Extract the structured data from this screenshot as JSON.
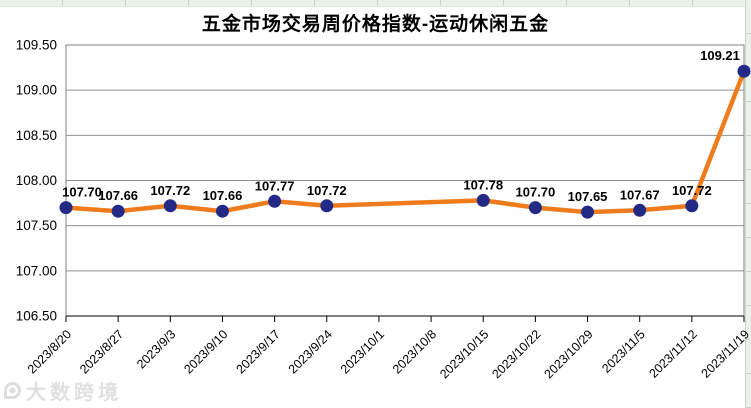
{
  "chart_data": {
    "type": "line",
    "title": "五金市场交易周价格指数-运动休闲五金",
    "categories": [
      "2023/8/20",
      "2023/8/27",
      "2023/9/3",
      "2023/9/10",
      "2023/9/17",
      "2023/9/24",
      "2023/10/1",
      "2023/10/8",
      "2023/10/15",
      "2023/10/22",
      "2023/10/29",
      "2023/11/5",
      "2023/11/12",
      "2023/11/19"
    ],
    "values": [
      107.7,
      107.66,
      107.72,
      107.66,
      107.77,
      107.72,
      null,
      null,
      107.78,
      107.7,
      107.65,
      107.67,
      107.72,
      109.21
    ],
    "data_labels": [
      "107.70",
      "107.66",
      "107.72",
      "107.66",
      "107.77",
      "107.72",
      "107.78",
      "107.70",
      "107.65",
      "107.67",
      "107.72",
      "109.21"
    ],
    "ylim": [
      106.5,
      109.5
    ],
    "ytick_step": 0.5,
    "yticks": [
      "109.50",
      "109.00",
      "108.50",
      "108.00",
      "107.50",
      "107.00",
      "106.50"
    ],
    "xlabel": "",
    "ylabel": "",
    "grid": "horizontal-only",
    "legend": "none",
    "x_label_rotation_deg": -45,
    "colors": {
      "line": "#EE7C1C",
      "marker": "#232A85",
      "grid": "#909090",
      "plot_border": "#808080",
      "axis": "#000000",
      "text": "#000000"
    }
  },
  "excel": {
    "cell_fill": "#EAF2E9",
    "cell_border": "#C6D8C6"
  },
  "watermark": {
    "logo_icon": "dashu-kuajing-logo",
    "text": "大数跨境"
  }
}
